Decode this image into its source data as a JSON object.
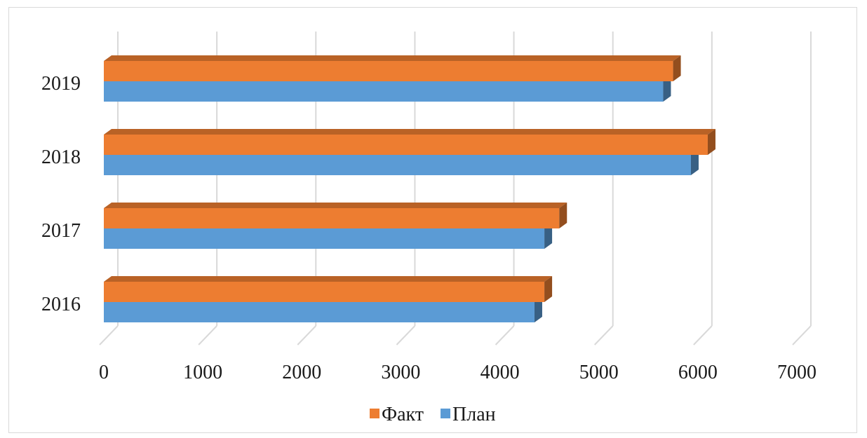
{
  "chart_data": {
    "type": "bar",
    "orientation": "horizontal",
    "style": "3d",
    "categories": [
      "2016",
      "2017",
      "2018",
      "2019"
    ],
    "series": [
      {
        "name": "План",
        "values": [
          4350,
          4450,
          5930,
          5650
        ],
        "color": "#5b9bd5"
      },
      {
        "name": "Факт",
        "values": [
          4450,
          4600,
          6100,
          5750
        ],
        "color": "#ed7d31"
      }
    ],
    "x_ticks": [
      "0",
      "1000",
      "2000",
      "3000",
      "4000",
      "5000",
      "6000",
      "7000"
    ],
    "xlim": [
      0,
      7000
    ],
    "grid": "vertical",
    "legend": {
      "position": "bottom",
      "order": [
        "Факт",
        "План"
      ]
    }
  }
}
